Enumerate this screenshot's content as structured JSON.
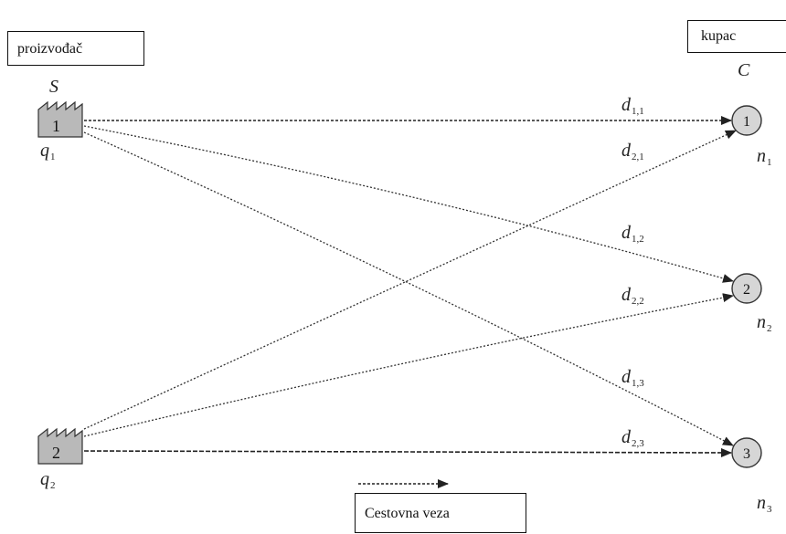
{
  "producer_box": "proizvođač",
  "customer_box": "kupac",
  "legend_label": "Cestovna veza",
  "sources_label": "S",
  "customers_label": "C",
  "factories": [
    {
      "id": "1",
      "supply": "q",
      "supply_sub": "1"
    },
    {
      "id": "2",
      "supply": "q",
      "supply_sub": "2"
    }
  ],
  "customers": [
    {
      "id": "1",
      "demand": "n",
      "demand_sub": "1"
    },
    {
      "id": "2",
      "demand": "n",
      "demand_sub": "2"
    },
    {
      "id": "3",
      "demand": "n",
      "demand_sub": "3"
    }
  ],
  "edges": [
    {
      "name": "d",
      "sub": "1,1"
    },
    {
      "name": "d",
      "sub": "2,1"
    },
    {
      "name": "d",
      "sub": "1,2"
    },
    {
      "name": "d",
      "sub": "2,2"
    },
    {
      "name": "d",
      "sub": "1,3"
    },
    {
      "name": "d",
      "sub": "2,3"
    }
  ],
  "colors": {
    "factory_fill": "#b9b9b9",
    "node_fill": "#d6d6d6",
    "line": "#222222"
  }
}
